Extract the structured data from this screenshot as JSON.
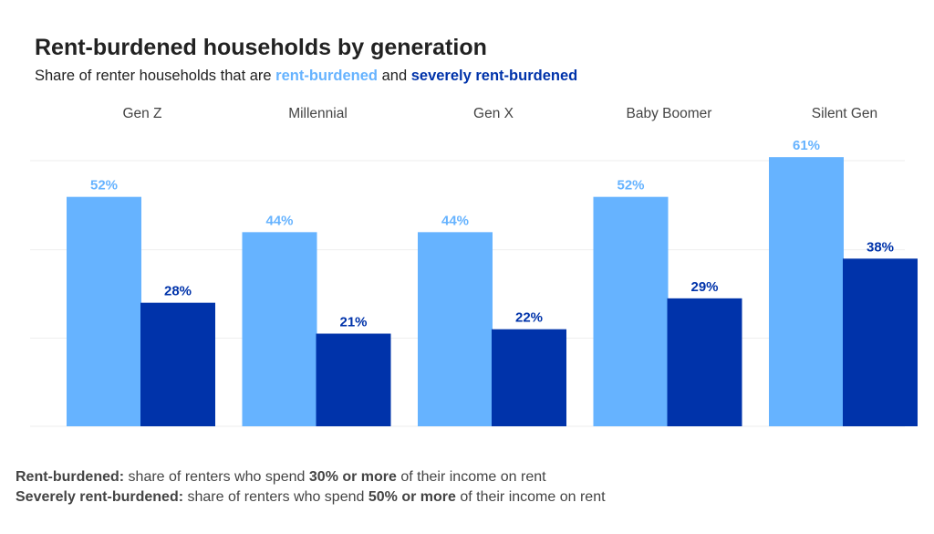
{
  "title": "Rent-burdened households by generation",
  "subtitle": {
    "prefix": "Share of renter households that are ",
    "series1": "rent-burdened",
    "conj": " and ",
    "series2": "severely rent-burdened"
  },
  "colors": {
    "rent_burdened": "#66b3ff",
    "severely_rent_burdened": "#0033aa",
    "grid": "#eeeeee",
    "category_label": "#444444"
  },
  "chart_data": {
    "type": "bar",
    "categories": [
      "Gen Z",
      "Millennial",
      "Gen X",
      "Baby Boomer",
      "Silent Gen"
    ],
    "series": [
      {
        "name": "rent-burdened",
        "values": [
          52,
          44,
          44,
          52,
          61
        ],
        "labels": [
          "52%",
          "44%",
          "44%",
          "52%",
          "61%"
        ]
      },
      {
        "name": "severely rent-burdened",
        "values": [
          28,
          21,
          22,
          29,
          38
        ],
        "labels": [
          "28%",
          "21%",
          "22%",
          "29%",
          "38%"
        ]
      }
    ],
    "ylim": [
      0,
      60
    ],
    "grid": true,
    "category_label_position": "top",
    "legend": "subtitle"
  },
  "footnotes": [
    {
      "term": "Rent-burdened:",
      "pre": " share of renters who spend ",
      "emph": "30% or more",
      "post": " of their income on rent"
    },
    {
      "term": "Severely rent-burdened:",
      "pre": " share of renters who spend ",
      "emph": "50% or more",
      "post": " of their income on rent"
    }
  ]
}
